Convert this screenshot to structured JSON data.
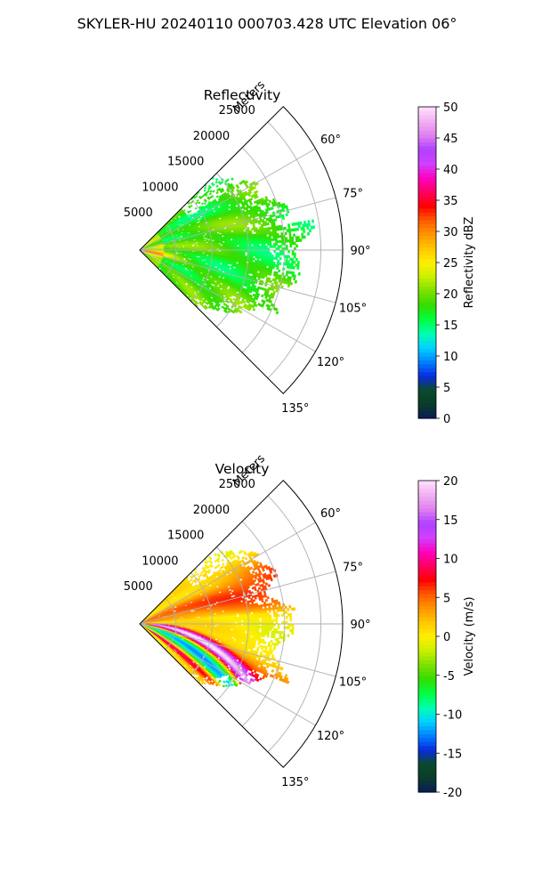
{
  "figure": {
    "title": "SKYLER-HU  20240110  000703.428 UTC Elevation 06°"
  },
  "chart_data": [
    {
      "type": "heatmap",
      "title": "Reflectivity",
      "projection": "polar-sector",
      "theta_ticks": [
        "60°",
        "75°",
        "90°",
        "105°",
        "120°",
        "135°"
      ],
      "theta_range_deg": [
        45,
        135
      ],
      "range_label": "Meters",
      "range_ticks": [
        "5000",
        "10000",
        "15000",
        "20000",
        "25000"
      ],
      "range_limit": [
        0,
        28000
      ],
      "grid": true,
      "colorbar": {
        "label": "Reflectivity dBZ",
        "min": 0,
        "max": 50,
        "ticks": [
          "0",
          "5",
          "10",
          "15",
          "20",
          "25",
          "30",
          "35",
          "40",
          "45",
          "50"
        ],
        "colormap_stops": [
          "#0a1a5c",
          "#0a3b2a",
          "#0b4a2a",
          "#0a2ae0",
          "#0080ff",
          "#00d2ff",
          "#00ffb0",
          "#00ff40",
          "#33dd00",
          "#7ae000",
          "#c8f000",
          "#ffef00",
          "#ffc800",
          "#ff9600",
          "#ff5a00",
          "#ff0000",
          "#ff0060",
          "#ff00c0",
          "#d040ff",
          "#b040ff",
          "#e080f0",
          "#f0b0f0",
          "#ffe0ff"
        ]
      },
      "field_summary": "Mostly 15-25 dBZ echoes across the sector; 24-30 dBZ core near the radar along 95°-110°"
    },
    {
      "type": "heatmap",
      "title": "Velocity",
      "projection": "polar-sector",
      "theta_ticks": [
        "60°",
        "75°",
        "90°",
        "105°",
        "120°",
        "135°"
      ],
      "theta_range_deg": [
        45,
        135
      ],
      "range_label": "Meters",
      "range_ticks": [
        "5000",
        "10000",
        "15000",
        "20000",
        "25000"
      ],
      "range_limit": [
        0,
        28000
      ],
      "grid": true,
      "colorbar": {
        "label": "Velocity (m/s)",
        "min": -20,
        "max": 20,
        "ticks": [
          "-20",
          "-15",
          "-10",
          "-5",
          "0",
          "5",
          "10",
          "15",
          "20"
        ],
        "colormap_stops": [
          "#0a1a5c",
          "#0a3b2a",
          "#0b4a2a",
          "#0a2ae0",
          "#0080ff",
          "#00d2ff",
          "#00ffb0",
          "#00ff40",
          "#33dd00",
          "#7ae000",
          "#c8f000",
          "#ffef00",
          "#ffc800",
          "#ff9600",
          "#ff5a00",
          "#ff0000",
          "#ff0060",
          "#ff00c0",
          "#d040ff",
          "#b040ff",
          "#e080f0",
          "#f0b0f0",
          "#ffe0ff"
        ]
      },
      "field_summary": "Inbound (-5 to -12 m/s) band curving from 90° to 130°; outbound (+8 to +17 m/s) band near 95°-110° and west of radar; near-zero (yellow) elsewhere"
    }
  ]
}
